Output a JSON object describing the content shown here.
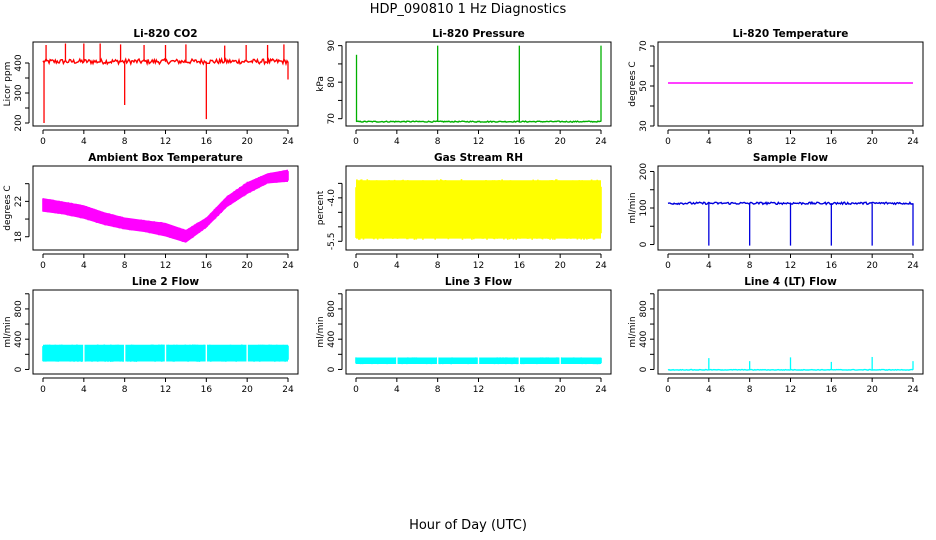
{
  "figure": {
    "title": "HDP_090810  1 Hz Diagnostics",
    "xlabel": "Hour of Day (UTC)"
  },
  "chart_data": [
    {
      "type": "line",
      "title": "Li-820 CO2",
      "ylabel": "Licor ppm",
      "color": "#ff0000",
      "xlim": [
        0,
        24
      ],
      "ylim": [
        190,
        470
      ],
      "xticks": [
        "0",
        "4",
        "8",
        "12",
        "16",
        "20",
        "24"
      ],
      "yticks": [
        200,
        250,
        300,
        350,
        400
      ],
      "ytick_labels": [
        "200",
        "",
        "300",
        "",
        "400"
      ],
      "baseline": 405,
      "noise": 8,
      "spikes": [
        {
          "x": 0.1,
          "y": 200
        },
        {
          "x": 0.3,
          "y": 460
        },
        {
          "x": 2.2,
          "y": 465
        },
        {
          "x": 4.0,
          "y": 465
        },
        {
          "x": 5.6,
          "y": 465
        },
        {
          "x": 7.6,
          "y": 462
        },
        {
          "x": 8.0,
          "y": 260
        },
        {
          "x": 9.9,
          "y": 460
        },
        {
          "x": 12.0,
          "y": 460
        },
        {
          "x": 14.0,
          "y": 462
        },
        {
          "x": 16.0,
          "y": 213
        },
        {
          "x": 17.8,
          "y": 458
        },
        {
          "x": 19.9,
          "y": 460
        },
        {
          "x": 22.0,
          "y": 460
        },
        {
          "x": 23.6,
          "y": 462
        },
        {
          "x": 24.0,
          "y": 345
        }
      ]
    },
    {
      "type": "line",
      "title": "Li-820 Pressure",
      "ylabel": "kPa",
      "color": "#00b000",
      "xlim": [
        0,
        24
      ],
      "ylim": [
        68,
        91
      ],
      "xticks": [
        "0",
        "4",
        "8",
        "12",
        "16",
        "20",
        "24"
      ],
      "yticks": [
        70,
        75,
        80,
        85,
        90
      ],
      "ytick_labels": [
        "70",
        "",
        "80",
        "",
        "90"
      ],
      "baseline": 69.2,
      "noise": 0.15,
      "spikes": [
        {
          "x": 0.05,
          "y": 87.5
        },
        {
          "x": 8.0,
          "y": 90.0
        },
        {
          "x": 16.0,
          "y": 90.0
        },
        {
          "x": 24.0,
          "y": 90.0
        }
      ]
    },
    {
      "type": "line",
      "title": "Li-820 Temperature",
      "ylabel": "degrees C",
      "color": "#ff00ff",
      "xlim": [
        0,
        24
      ],
      "ylim": [
        30,
        72
      ],
      "xticks": [
        "0",
        "4",
        "8",
        "12",
        "16",
        "20",
        "24"
      ],
      "yticks": [
        30,
        40,
        50,
        60,
        70
      ],
      "ytick_labels": [
        "30",
        "",
        "50",
        "",
        "70"
      ],
      "baseline": 51.5,
      "noise": 0,
      "spikes": []
    },
    {
      "type": "line",
      "title": "Ambient Box Temperature",
      "ylabel": "degrees C",
      "color": "#ff00ff",
      "xlim": [
        0,
        24
      ],
      "ylim": [
        16.5,
        26
      ],
      "xticks": [
        "0",
        "4",
        "8",
        "12",
        "16",
        "20",
        "24"
      ],
      "yticks": [
        18,
        20,
        22,
        24
      ],
      "ytick_labels": [
        "18",
        "",
        "22",
        ""
      ],
      "band": [
        {
          "x": 0,
          "lo": 20.8,
          "hi": 22.4
        },
        {
          "x": 2,
          "lo": 20.5,
          "hi": 22.0
        },
        {
          "x": 4,
          "lo": 20.0,
          "hi": 21.6
        },
        {
          "x": 6,
          "lo": 19.3,
          "hi": 20.8
        },
        {
          "x": 8,
          "lo": 18.8,
          "hi": 20.2
        },
        {
          "x": 10,
          "lo": 18.5,
          "hi": 19.9
        },
        {
          "x": 12,
          "lo": 18.0,
          "hi": 19.6
        },
        {
          "x": 14,
          "lo": 17.3,
          "hi": 18.8
        },
        {
          "x": 16,
          "lo": 19.0,
          "hi": 20.2
        },
        {
          "x": 18,
          "lo": 21.3,
          "hi": 22.6
        },
        {
          "x": 20,
          "lo": 22.8,
          "hi": 24.2
        },
        {
          "x": 22,
          "lo": 24.0,
          "hi": 25.2
        },
        {
          "x": 24,
          "lo": 24.2,
          "hi": 25.6
        }
      ]
    },
    {
      "type": "line",
      "title": "Gas Stream RH",
      "ylabel": "percent",
      "color": "#ffff00",
      "xlim": [
        0,
        24
      ],
      "ylim": [
        -5.8,
        -2.9
      ],
      "xticks": [
        "0",
        "4",
        "8",
        "12",
        "16",
        "20",
        "24"
      ],
      "yticks": [
        -5.5,
        -5.0,
        -4.5,
        -4.0,
        -3.5
      ],
      "ytick_labels": [
        "-5.5",
        "",
        "",
        "-4.0",
        ""
      ],
      "band": [
        {
          "x": 0,
          "lo": -5.45,
          "hi": -3.35
        },
        {
          "x": 24,
          "lo": -5.45,
          "hi": -3.35
        }
      ]
    },
    {
      "type": "line",
      "title": "Sample Flow",
      "ylabel": "ml/min",
      "color": "#0000dd",
      "xlim": [
        0,
        24
      ],
      "ylim": [
        -15,
        215
      ],
      "xticks": [
        "0",
        "4",
        "8",
        "12",
        "16",
        "20",
        "24"
      ],
      "yticks": [
        0,
        50,
        100,
        150,
        200
      ],
      "ytick_labels": [
        "0",
        "",
        "100",
        "",
        "200"
      ],
      "baseline": 113,
      "noise": 3,
      "spikes": [
        {
          "x": 4.0,
          "y": -3
        },
        {
          "x": 8.0,
          "y": -3
        },
        {
          "x": 12.0,
          "y": -3
        },
        {
          "x": 16.0,
          "y": -3
        },
        {
          "x": 20.0,
          "y": -3
        },
        {
          "x": 24.0,
          "y": -3
        }
      ]
    },
    {
      "type": "line",
      "title": "Line 2 Flow",
      "ylabel": "ml/min",
      "color": "#00ffff",
      "xlim": [
        0,
        24
      ],
      "ylim": [
        -60,
        1050
      ],
      "xticks": [
        "0",
        "4",
        "8",
        "12",
        "16",
        "20",
        "24"
      ],
      "yticks": [
        0,
        200,
        400,
        600,
        800,
        1000
      ],
      "ytick_labels": [
        "0",
        "",
        "400",
        "",
        "800",
        ""
      ],
      "band": [
        {
          "x": 0,
          "lo": 100,
          "hi": 330
        },
        {
          "x": 24,
          "lo": 100,
          "hi": 330
        }
      ],
      "gaps": [
        4,
        8,
        12,
        16,
        20
      ]
    },
    {
      "type": "line",
      "title": "Line 3 Flow",
      "ylabel": "ml/min",
      "color": "#00ffff",
      "xlim": [
        0,
        24
      ],
      "ylim": [
        -60,
        1050
      ],
      "xticks": [
        "0",
        "4",
        "8",
        "12",
        "16",
        "20",
        "24"
      ],
      "yticks": [
        0,
        200,
        400,
        600,
        800,
        1000
      ],
      "ytick_labels": [
        "0",
        "",
        "400",
        "",
        "800",
        ""
      ],
      "band": [
        {
          "x": 0,
          "lo": 70,
          "hi": 160
        },
        {
          "x": 24,
          "lo": 70,
          "hi": 160
        }
      ],
      "gaps": [
        4,
        8,
        12,
        16,
        20
      ]
    },
    {
      "type": "line",
      "title": "Line 4 (LT) Flow",
      "ylabel": "ml/min",
      "color": "#00ffff",
      "xlim": [
        0,
        24
      ],
      "ylim": [
        -60,
        1050
      ],
      "xticks": [
        "0",
        "4",
        "8",
        "12",
        "16",
        "20",
        "24"
      ],
      "yticks": [
        0,
        200,
        400,
        600,
        800,
        1000
      ],
      "ytick_labels": [
        "0",
        "",
        "400",
        "",
        "800",
        ""
      ],
      "baseline": -5,
      "noise": 4,
      "spikes": [
        {
          "x": 4.0,
          "y": 150
        },
        {
          "x": 8.0,
          "y": 110
        },
        {
          "x": 12.0,
          "y": 160
        },
        {
          "x": 16.0,
          "y": 100
        },
        {
          "x": 20.0,
          "y": 165
        },
        {
          "x": 24.0,
          "y": 110
        }
      ]
    }
  ]
}
